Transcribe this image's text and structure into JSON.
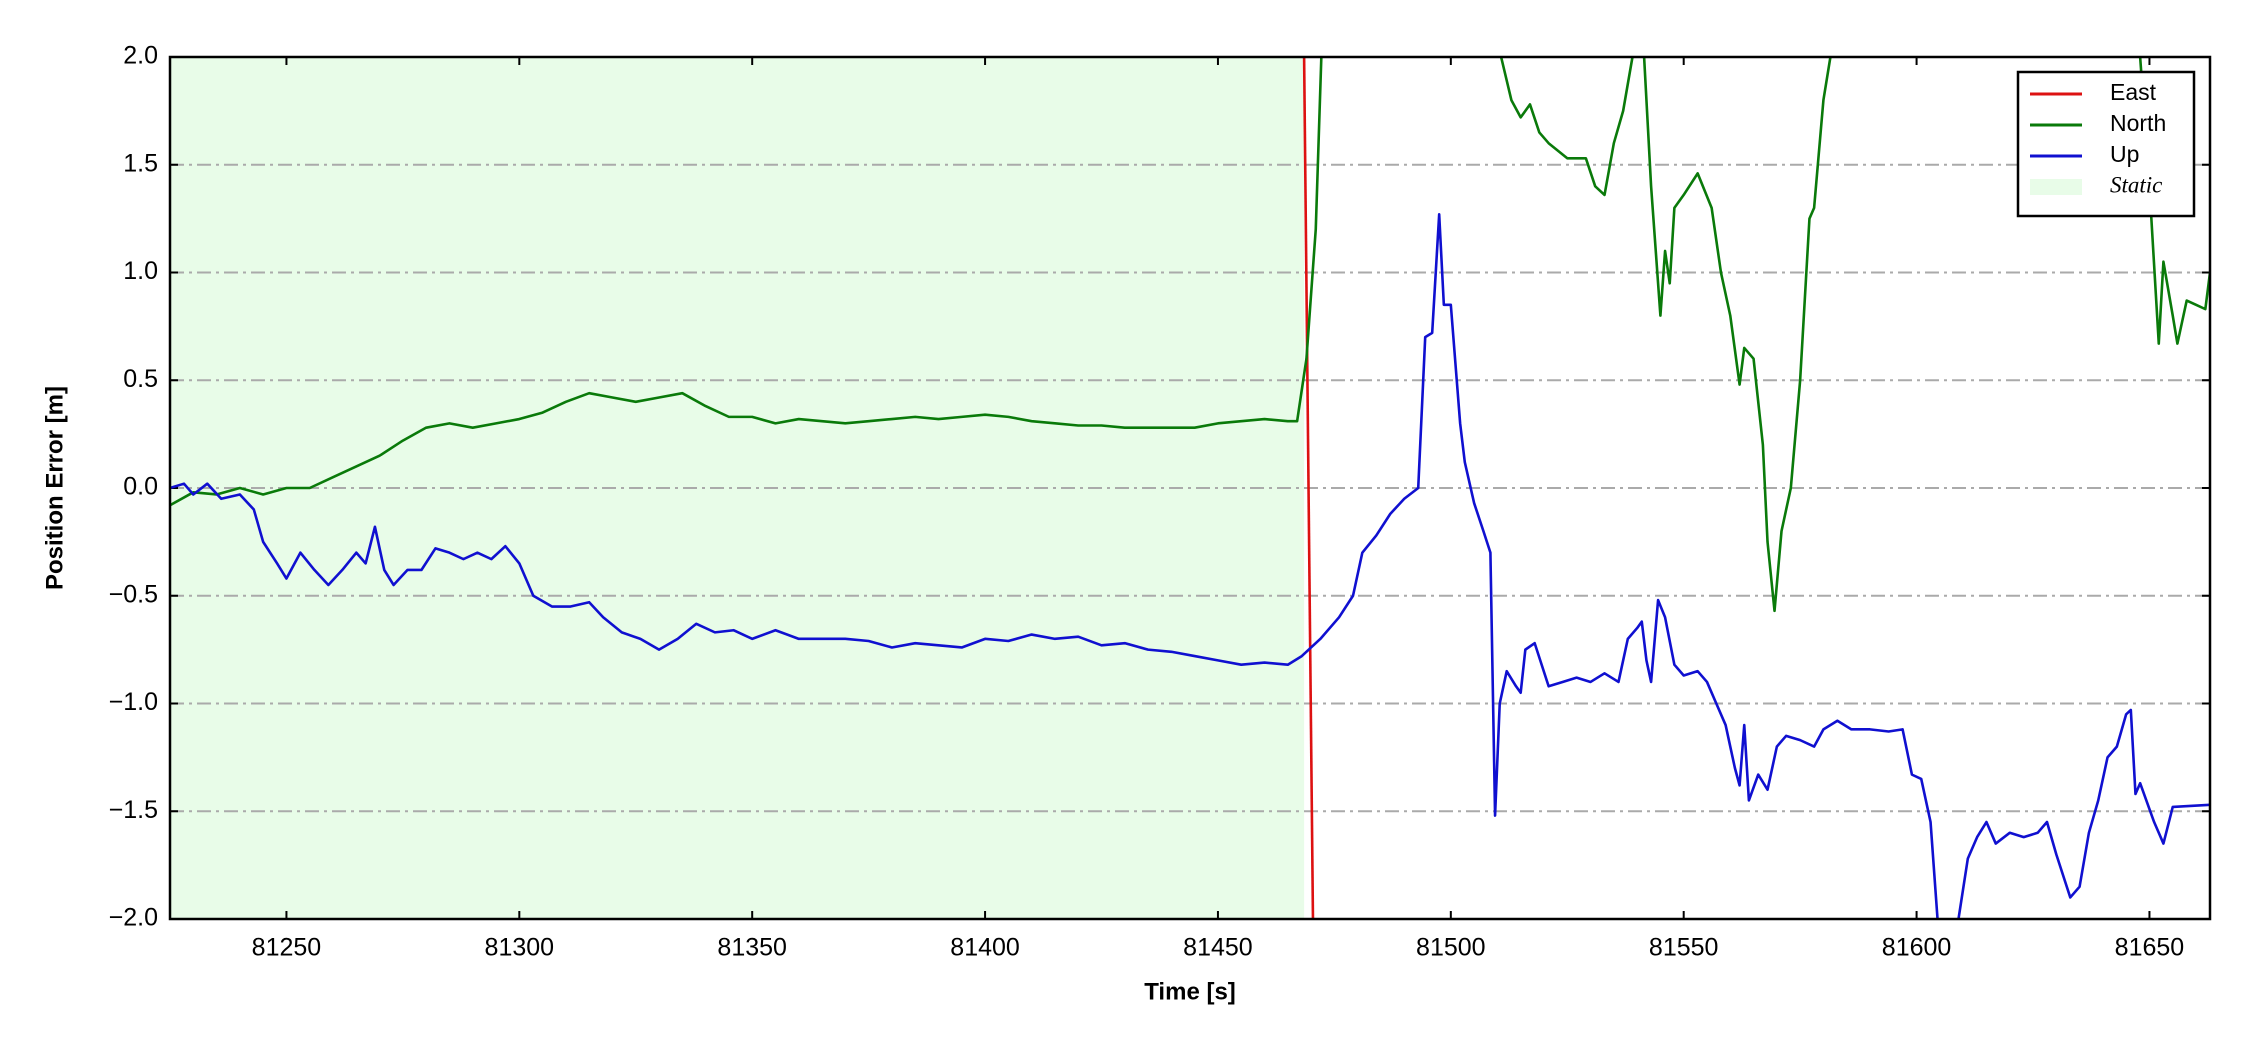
{
  "chart_data": {
    "type": "line",
    "xlabel": "Time [s]",
    "ylabel": "Position Error [m]",
    "xlim": [
      81225,
      81663
    ],
    "ylim": [
      -2,
      2
    ],
    "xticks": [
      81250,
      81300,
      81350,
      81400,
      81450,
      81500,
      81550,
      81600,
      81650
    ],
    "yticks": [
      {
        "value": -2,
        "label": "−2.0"
      },
      {
        "value": -1.5,
        "label": "−1.5"
      },
      {
        "value": -1,
        "label": "−1.0"
      },
      {
        "value": -0.5,
        "label": "−0.5"
      },
      {
        "value": 0,
        "label": "0.0"
      },
      {
        "value": 0.5,
        "label": "0.5"
      },
      {
        "value": 1,
        "label": "1.0"
      },
      {
        "value": 1.5,
        "label": "1.5"
      },
      {
        "value": 2,
        "label": "2.0"
      }
    ],
    "grid": true,
    "legend": "upper right",
    "static": {
      "label": "Static",
      "color": "#e8fce8",
      "range": [
        81225,
        81468.5
      ]
    },
    "series": [
      {
        "name": "East",
        "color": "#dd1111",
        "x": [
          81468.5,
          81470.4
        ],
        "values": [
          2,
          -2
        ]
      },
      {
        "name": "North",
        "color": "#0a7a0a",
        "x": [
          81225,
          81230,
          81235,
          81240,
          81245,
          81250,
          81255,
          81260,
          81265,
          81270,
          81275,
          81280,
          81285,
          81290,
          81295,
          81300,
          81305,
          81310,
          81315,
          81320,
          81325,
          81330,
          81335,
          81340,
          81345,
          81350,
          81355,
          81360,
          81365,
          81370,
          81375,
          81380,
          81385,
          81390,
          81395,
          81400,
          81405,
          81410,
          81415,
          81420,
          81425,
          81430,
          81435,
          81440,
          81445,
          81450,
          81455,
          81460,
          81465,
          81467,
          81469,
          81471,
          81472.2,
          81490,
          81510.8,
          81513,
          81515,
          81517,
          81519,
          81521,
          81525,
          81529,
          81531,
          81533,
          81535,
          81537,
          81539,
          81540,
          81541.5,
          81543,
          81545,
          81546,
          81547,
          81548,
          81550,
          81553,
          81556,
          81558,
          81560,
          81562,
          81563,
          81565,
          81567,
          81568,
          81569.5,
          81571,
          81573,
          81575,
          81577,
          81578,
          81580,
          81581.5,
          81600,
          81648,
          81650,
          81652,
          81653,
          81655,
          81656,
          81658,
          81660,
          81662,
          81663
        ],
        "values": [
          -0.08,
          -0.02,
          -0.03,
          0,
          -0.03,
          0,
          0,
          0.05,
          0.1,
          0.15,
          0.22,
          0.28,
          0.3,
          0.28,
          0.3,
          0.32,
          0.35,
          0.4,
          0.44,
          0.42,
          0.4,
          0.42,
          0.44,
          0.38,
          0.33,
          0.33,
          0.3,
          0.32,
          0.31,
          0.3,
          0.31,
          0.32,
          0.33,
          0.32,
          0.33,
          0.34,
          0.33,
          0.31,
          0.3,
          0.29,
          0.29,
          0.28,
          0.28,
          0.28,
          0.28,
          0.3,
          0.31,
          0.32,
          0.31,
          0.31,
          0.6,
          1.2,
          2,
          null,
          2,
          1.8,
          1.72,
          1.78,
          1.65,
          1.6,
          1.53,
          1.53,
          1.4,
          1.36,
          1.6,
          1.75,
          2,
          null,
          2,
          1.4,
          0.8,
          1.1,
          0.95,
          1.3,
          1.36,
          1.46,
          1.3,
          1,
          0.8,
          0.48,
          0.65,
          0.6,
          0.2,
          -0.25,
          -0.57,
          -0.2,
          0,
          0.5,
          1.25,
          1.3,
          1.8,
          2,
          null,
          2,
          1.4,
          0.67,
          1.05,
          0.8,
          0.67,
          0.87,
          0.85,
          0.83,
          1
        ]
      },
      {
        "name": "Up",
        "color": "#1010d0",
        "x": [
          81225,
          81228,
          81230,
          81233,
          81236,
          81240,
          81243,
          81245,
          81248,
          81250,
          81253,
          81256,
          81259,
          81262,
          81265,
          81267,
          81269,
          81271,
          81273,
          81276,
          81279,
          81282,
          81285,
          81288,
          81291,
          81294,
          81297,
          81300,
          81303,
          81307,
          81311,
          81315,
          81318,
          81322,
          81326,
          81330,
          81334,
          81338,
          81342,
          81346,
          81350,
          81355,
          81360,
          81365,
          81370,
          81375,
          81380,
          81385,
          81390,
          81395,
          81400,
          81405,
          81410,
          81415,
          81420,
          81425,
          81430,
          81435,
          81440,
          81445,
          81450,
          81455,
          81460,
          81465,
          81468,
          81472,
          81476,
          81479,
          81481,
          81484,
          81487,
          81490,
          81493,
          81494.5,
          81496,
          81497.5,
          81498.5,
          81500,
          81502,
          81503,
          81505,
          81507,
          81508.5,
          81509.5,
          81510.5,
          81512,
          81514,
          81515,
          81516,
          81518,
          81521,
          81524,
          81527,
          81530,
          81533,
          81536,
          81538,
          81540,
          81541,
          81542,
          81543,
          81544.5,
          81546,
          81548,
          81550,
          81553,
          81555,
          81557,
          81559,
          81561,
          81562,
          81563,
          81564,
          81566,
          81568,
          81570,
          81572,
          81575,
          81578,
          81580,
          81583,
          81586,
          81590,
          81594,
          81597,
          81599,
          81601,
          81603,
          81604.5,
          81608,
          81609,
          81611,
          81613,
          81615,
          81617,
          81620,
          81623,
          81626,
          81628,
          81630,
          81633,
          81635,
          81637,
          81639,
          81641,
          81643,
          81645,
          81646,
          81647,
          81648,
          81651,
          81653,
          81655,
          81663
        ],
        "values": [
          0,
          0.02,
          -0.03,
          0.02,
          -0.05,
          -0.03,
          -0.1,
          -0.25,
          -0.35,
          -0.42,
          -0.3,
          -0.38,
          -0.45,
          -0.38,
          -0.3,
          -0.35,
          -0.18,
          -0.38,
          -0.45,
          -0.38,
          -0.38,
          -0.28,
          -0.3,
          -0.33,
          -0.3,
          -0.33,
          -0.27,
          -0.35,
          -0.5,
          -0.55,
          -0.55,
          -0.53,
          -0.6,
          -0.67,
          -0.7,
          -0.75,
          -0.7,
          -0.63,
          -0.67,
          -0.66,
          -0.7,
          -0.66,
          -0.7,
          -0.7,
          -0.7,
          -0.71,
          -0.74,
          -0.72,
          -0.73,
          -0.74,
          -0.7,
          -0.71,
          -0.68,
          -0.7,
          -0.69,
          -0.73,
          -0.72,
          -0.75,
          -0.76,
          -0.78,
          -0.8,
          -0.82,
          -0.81,
          -0.82,
          -0.78,
          -0.7,
          -0.6,
          -0.5,
          -0.3,
          -0.22,
          -0.12,
          -0.05,
          0,
          0.7,
          0.72,
          1.27,
          0.85,
          0.85,
          0.3,
          0.12,
          -0.07,
          -0.2,
          -0.3,
          -1.52,
          -1,
          -0.85,
          -0.92,
          -0.95,
          -0.75,
          -0.72,
          -0.92,
          -0.9,
          -0.88,
          -0.9,
          -0.86,
          -0.9,
          -0.7,
          -0.65,
          -0.62,
          -0.8,
          -0.9,
          -0.52,
          -0.6,
          -0.82,
          -0.87,
          -0.85,
          -0.9,
          -1,
          -1.1,
          -1.3,
          -1.38,
          -1.1,
          -1.45,
          -1.33,
          -1.4,
          -1.2,
          -1.15,
          -1.17,
          -1.2,
          -1.12,
          -1.08,
          -1.12,
          -1.12,
          -1.13,
          -1.12,
          -1.33,
          -1.35,
          -1.55,
          -2,
          null,
          -2,
          -1.72,
          -1.62,
          -1.55,
          -1.65,
          -1.6,
          -1.62,
          -1.6,
          -1.55,
          -1.7,
          -1.9,
          -1.85,
          -1.6,
          -1.45,
          -1.25,
          -1.2,
          -1.05,
          -1.03,
          -1.42,
          -1.37,
          -1.55,
          -1.65,
          -1.48,
          -1.47
        ]
      }
    ]
  }
}
